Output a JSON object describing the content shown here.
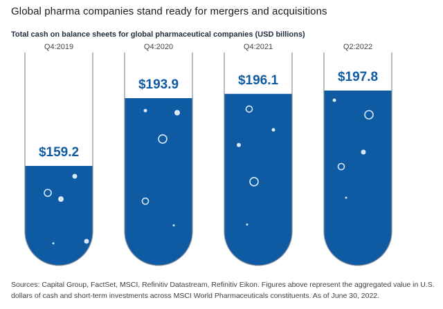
{
  "title": "Global pharma companies stand ready for mergers and acquisitions",
  "chart_data": {
    "type": "bar",
    "title": "Total cash on balance sheets for global pharmaceutical companies (USD billions)",
    "categories": [
      "Q4:2019",
      "Q4:2020",
      "Q4:2021",
      "Q2:2022"
    ],
    "values": [
      159.2,
      193.9,
      196.1,
      197.8
    ],
    "data_labels": [
      "$159.2",
      "$193.9",
      "$196.1",
      "$197.8"
    ],
    "xlabel": "",
    "ylabel": "",
    "ylim": [
      0,
      210
    ],
    "grid": false,
    "legend": "none",
    "style": "test-tube",
    "colors": {
      "fill": "#0e5aa3",
      "outline": "#8a8f96",
      "label": "#0e5aa3",
      "bubble": "#d8eaf8"
    }
  },
  "footnote": "Sources: Capital Group, FactSet, MSCI, Refinitiv Datastream, Refinitiv Eikon. Figures above represent the aggregated value in U.S. dollars of cash and short-term investments across MSCI World Pharmaceuticals constituents. As of June 30, 2022."
}
